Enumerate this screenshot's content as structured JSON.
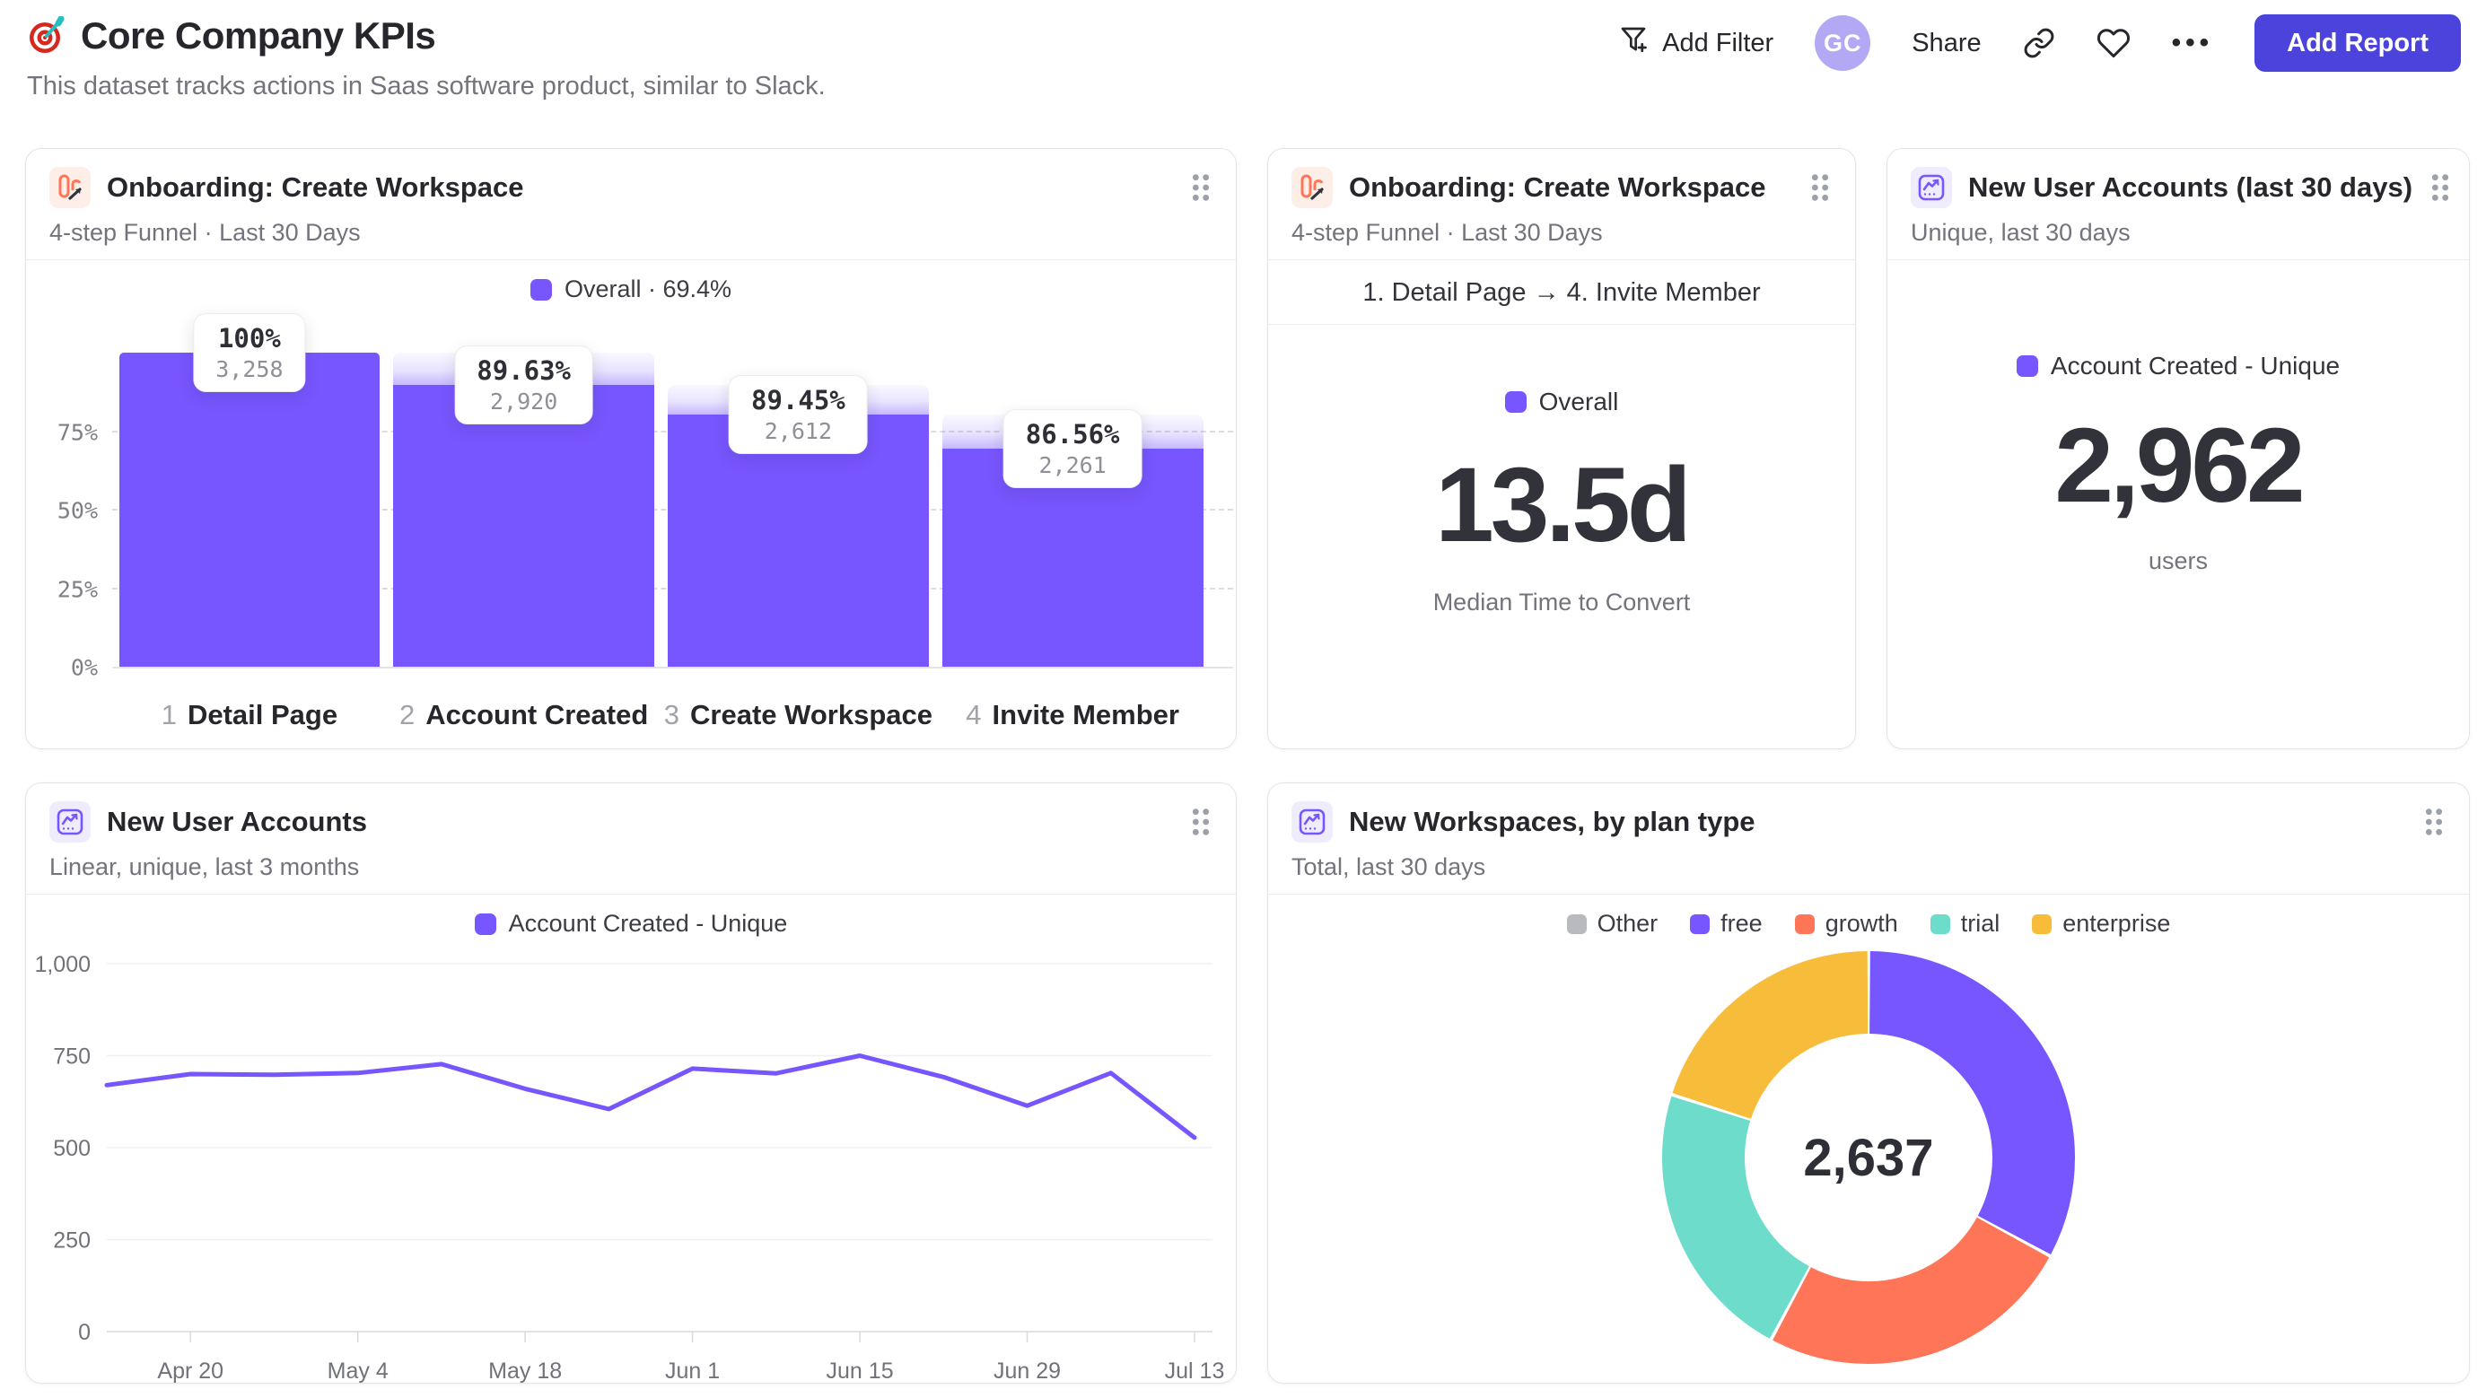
{
  "header": {
    "logo_icon": "target-dart-icon",
    "title": "Core Company KPIs",
    "subtitle": "This dataset tracks actions in Saas software product, similar to Slack.",
    "add_filter_label": "Add Filter",
    "avatar_initials": "GC",
    "share_label": "Share",
    "ellipsis": "•••",
    "add_report_label": "Add Report"
  },
  "colors": {
    "accent_purple": "#7856FF",
    "button_indigo": "#4B43DB",
    "coral": "#FF7557",
    "teal": "#6EDCCB",
    "amber": "#F8BC3B",
    "gray": "#B9B9C0"
  },
  "cards": {
    "funnel": {
      "title": "Onboarding: Create Workspace",
      "subtitle": "4-step Funnel · Last 30 Days",
      "legend": "Overall · 69.4%"
    },
    "time_to_convert": {
      "title": "Onboarding: Create Workspace",
      "subtitle": "4-step Funnel · Last 30 Days",
      "range": "1. Detail Page → 4. Invite Member",
      "legend": "Overall",
      "value": "13.5d",
      "caption": "Median Time to Convert"
    },
    "new_users_30d": {
      "title": "New User Accounts (last 30 days)",
      "subtitle": "Unique, last 30 days",
      "legend": "Account Created - Unique",
      "value": "2,962",
      "caption": "users"
    },
    "new_users_trend": {
      "title": "New User Accounts",
      "subtitle": "Linear, unique, last 3 months",
      "legend": "Account Created - Unique"
    },
    "workspaces_by_plan": {
      "title": "New Workspaces, by plan type",
      "subtitle": "Total, last 30 days",
      "center_value": "2,637"
    }
  },
  "chart_data": [
    {
      "id": "funnel",
      "type": "bar",
      "title": "Onboarding: Create Workspace",
      "legend": "Overall · 69.4%",
      "step_numbers": [
        "1",
        "2",
        "3",
        "4"
      ],
      "categories": [
        "Detail Page",
        "Account Created",
        "Create Workspace",
        "Invite Member"
      ],
      "values": [
        3258,
        2920,
        2612,
        2261
      ],
      "value_labels": [
        "3,258",
        "2,920",
        "2,612",
        "2,261"
      ],
      "pct_labels": [
        "100%",
        "89.63%",
        "89.45%",
        "86.56%"
      ],
      "overall_pct": 69.4,
      "y_ticks": [
        0,
        25,
        50,
        75
      ],
      "y_tick_labels": [
        "0%",
        "25%",
        "50%",
        "75%"
      ],
      "ylim": [
        0,
        100
      ],
      "bar_color": "#7856FF",
      "grid": true
    },
    {
      "id": "line",
      "type": "line",
      "series": [
        {
          "name": "Account Created - Unique",
          "values": [
            670,
            700,
            698,
            703,
            727,
            660,
            605,
            715,
            702,
            750,
            692,
            614,
            703,
            527
          ]
        }
      ],
      "x_tick_labels": [
        "Apr 20",
        "May 4",
        "May 18",
        "Jun 1",
        "Jun 15",
        "Jun 29",
        "Jul 13"
      ],
      "x_tick_indices": [
        1,
        3,
        5,
        7,
        9,
        11,
        13
      ],
      "y_ticks": [
        0,
        250,
        500,
        750,
        1000
      ],
      "y_tick_labels": [
        "0",
        "250",
        "500",
        "750",
        "1,000"
      ],
      "ylim": [
        0,
        1000
      ],
      "line_color": "#7856FF",
      "grid": true,
      "legend_position": "top"
    },
    {
      "id": "donut",
      "type": "pie",
      "total_label": "2,637",
      "legend_position": "top",
      "slices": [
        {
          "label": "Other",
          "pct": 0,
          "color": "#B9B9C0"
        },
        {
          "label": "free",
          "pct": 32.9,
          "color": "#7856FF"
        },
        {
          "label": "growth",
          "pct": 24.9,
          "color": "#FF7557"
        },
        {
          "label": "trial",
          "pct": 22.1,
          "color": "#6EDCCB"
        },
        {
          "label": "enterprise",
          "pct": 20.1,
          "color": "#F8BC3B"
        }
      ]
    }
  ]
}
